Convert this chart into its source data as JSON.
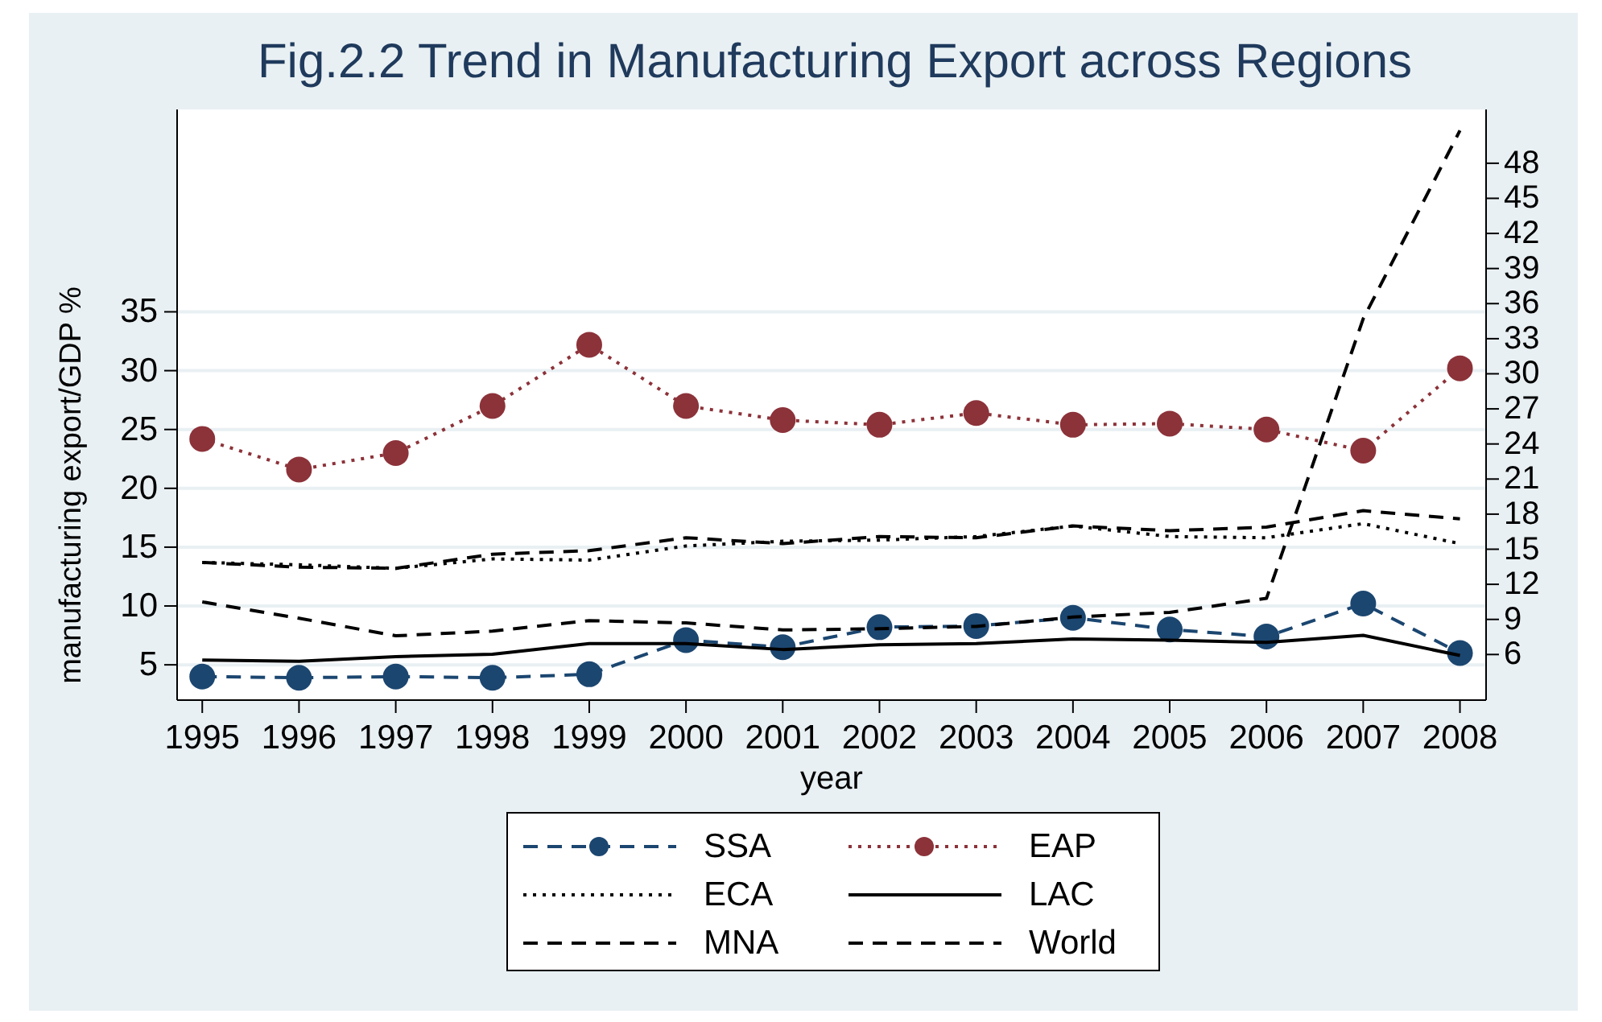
{
  "chart_data": {
    "type": "line",
    "title": "Fig.2.2 Trend in Manufacturing Export across Regions",
    "xlabel": "year",
    "ylabel": "manufacturing export/GDP %",
    "x": [
      1995,
      1996,
      1997,
      1998,
      1999,
      2000,
      2001,
      2002,
      2003,
      2004,
      2005,
      2006,
      2007,
      2008
    ],
    "xlim": [
      1994.74,
      2008.27
    ],
    "xticks": [
      1995,
      1996,
      1997,
      1998,
      1999,
      2000,
      2001,
      2002,
      2003,
      2004,
      2005,
      2006,
      2007,
      2008
    ],
    "ylim": [
      2,
      52.2
    ],
    "yticks": [
      5,
      10,
      15,
      20,
      25,
      30,
      35
    ],
    "y2lim": [
      2.1,
      52.6
    ],
    "y2ticks": [
      6,
      9,
      12,
      15,
      18,
      21,
      24,
      27,
      30,
      33,
      36,
      39,
      42,
      45,
      48
    ],
    "grid": "y",
    "legend": "bottom",
    "series": [
      {
        "name": "SSA",
        "color": "#1b4670",
        "line_style": "dashed",
        "marker": "circle",
        "values": [
          4.0,
          3.9,
          4.0,
          3.9,
          4.2,
          7.1,
          6.5,
          8.2,
          8.3,
          9.0,
          8.0,
          7.4,
          10.2,
          6.0
        ]
      },
      {
        "name": "EAP",
        "color": "#8c3239",
        "line_style": "dotted",
        "marker": "circle",
        "values": [
          24.2,
          21.6,
          23.0,
          27.0,
          32.2,
          27.0,
          25.8,
          25.4,
          26.4,
          25.4,
          25.5,
          25.0,
          23.2,
          30.2
        ]
      },
      {
        "name": "ECA",
        "color": "#000000",
        "line_style": "dotted",
        "marker": "none",
        "values": [
          13.7,
          13.5,
          13.2,
          14.0,
          13.9,
          15.1,
          15.5,
          15.6,
          15.9,
          16.8,
          15.9,
          15.8,
          17.0,
          15.3
        ]
      },
      {
        "name": "LAC",
        "color": "#000000",
        "line_style": "solid",
        "marker": "none",
        "values": [
          5.4,
          5.3,
          5.7,
          5.9,
          6.8,
          6.8,
          6.3,
          6.7,
          6.8,
          7.2,
          7.1,
          6.9,
          7.5,
          5.8
        ]
      },
      {
        "name": "MNA",
        "color": "#000000",
        "line_style": "dashed",
        "marker": "none",
        "axis": "y2",
        "values": [
          10.5,
          9.1,
          7.6,
          8.0,
          8.9,
          8.7,
          8.1,
          8.2,
          8.4,
          9.2,
          9.6,
          10.8,
          34.7,
          50.8
        ]
      },
      {
        "name": "World",
        "color": "#000000",
        "line_style": "dashed",
        "marker": "none",
        "values": [
          13.7,
          13.3,
          13.2,
          14.4,
          14.7,
          15.8,
          15.3,
          15.9,
          15.8,
          16.8,
          16.4,
          16.7,
          18.1,
          17.4
        ]
      }
    ]
  }
}
